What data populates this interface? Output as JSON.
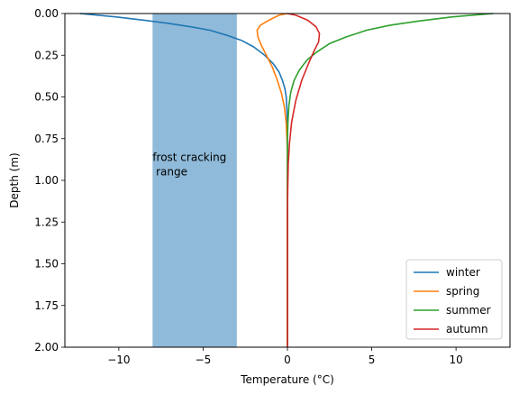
{
  "chart_data": {
    "type": "line",
    "title": "",
    "xlabel": "Temperature (°C)",
    "ylabel": "Depth (m)",
    "xlim": [
      -13.2,
      13.2
    ],
    "ylim": [
      2.0,
      0.0
    ],
    "y_inverted": true,
    "grid": false,
    "legend_position": "lower-right",
    "xticks": [
      -10,
      -5,
      0,
      5,
      10
    ],
    "xtick_labels": [
      "−10",
      "−5",
      "0",
      "5",
      "10"
    ],
    "yticks": [
      0.0,
      0.25,
      0.5,
      0.75,
      1.0,
      1.25,
      1.5,
      1.75,
      2.0
    ],
    "ytick_labels": [
      "0.00",
      "0.25",
      "0.50",
      "0.75",
      "1.00",
      "1.25",
      "1.50",
      "1.75",
      "2.00"
    ],
    "shaded_region": {
      "x_range": [
        -8,
        -3
      ],
      "color": "#8fbad9",
      "label": "frost cracking range",
      "label_lines": [
        "frost cracking",
        " range"
      ],
      "label_anchor": {
        "x": -8,
        "y": 0.97
      }
    },
    "series": [
      {
        "name": "winter",
        "color": "#1f77b4",
        "points": [
          {
            "x": -12.3,
            "y": 0.0
          },
          {
            "x": -10.2,
            "y": 0.02
          },
          {
            "x": -8.5,
            "y": 0.04
          },
          {
            "x": -7.0,
            "y": 0.06
          },
          {
            "x": -5.7,
            "y": 0.08
          },
          {
            "x": -4.6,
            "y": 0.1
          },
          {
            "x": -3.6,
            "y": 0.13
          },
          {
            "x": -2.75,
            "y": 0.16
          },
          {
            "x": -2.0,
            "y": 0.2
          },
          {
            "x": -1.35,
            "y": 0.25
          },
          {
            "x": -0.85,
            "y": 0.3
          },
          {
            "x": -0.5,
            "y": 0.35
          },
          {
            "x": -0.3,
            "y": 0.4
          },
          {
            "x": -0.15,
            "y": 0.45
          },
          {
            "x": -0.07,
            "y": 0.5
          },
          {
            "x": -0.02,
            "y": 0.6
          },
          {
            "x": 0.0,
            "y": 0.7
          },
          {
            "x": 0.0,
            "y": 2.0
          }
        ]
      },
      {
        "name": "spring",
        "color": "#ff7f0e",
        "points": [
          {
            "x": 0.0,
            "y": 0.0
          },
          {
            "x": -0.5,
            "y": 0.01
          },
          {
            "x": -1.1,
            "y": 0.04
          },
          {
            "x": -1.6,
            "y": 0.07
          },
          {
            "x": -1.8,
            "y": 0.1
          },
          {
            "x": -1.75,
            "y": 0.14
          },
          {
            "x": -1.55,
            "y": 0.19
          },
          {
            "x": -1.25,
            "y": 0.25
          },
          {
            "x": -0.9,
            "y": 0.32
          },
          {
            "x": -0.6,
            "y": 0.4
          },
          {
            "x": -0.35,
            "y": 0.48
          },
          {
            "x": -0.18,
            "y": 0.56
          },
          {
            "x": -0.08,
            "y": 0.65
          },
          {
            "x": -0.03,
            "y": 0.75
          },
          {
            "x": 0.0,
            "y": 0.85
          },
          {
            "x": 0.0,
            "y": 2.0
          }
        ]
      },
      {
        "name": "summer",
        "color": "#2ca02c",
        "points": [
          {
            "x": 12.2,
            "y": 0.0
          },
          {
            "x": 9.8,
            "y": 0.02
          },
          {
            "x": 7.8,
            "y": 0.045
          },
          {
            "x": 6.1,
            "y": 0.07
          },
          {
            "x": 4.7,
            "y": 0.1
          },
          {
            "x": 3.5,
            "y": 0.14
          },
          {
            "x": 2.5,
            "y": 0.18
          },
          {
            "x": 1.75,
            "y": 0.23
          },
          {
            "x": 1.15,
            "y": 0.28
          },
          {
            "x": 0.7,
            "y": 0.34
          },
          {
            "x": 0.4,
            "y": 0.4
          },
          {
            "x": 0.2,
            "y": 0.47
          },
          {
            "x": 0.09,
            "y": 0.55
          },
          {
            "x": 0.03,
            "y": 0.65
          },
          {
            "x": 0.0,
            "y": 0.75
          },
          {
            "x": 0.0,
            "y": 2.0
          }
        ]
      },
      {
        "name": "autumn",
        "color": "#d62728",
        "points": [
          {
            "x": 0.0,
            "y": 0.0
          },
          {
            "x": 0.5,
            "y": 0.01
          },
          {
            "x": 1.2,
            "y": 0.04
          },
          {
            "x": 1.7,
            "y": 0.08
          },
          {
            "x": 1.9,
            "y": 0.12
          },
          {
            "x": 1.85,
            "y": 0.17
          },
          {
            "x": 1.6,
            "y": 0.22
          },
          {
            "x": 1.25,
            "y": 0.3
          },
          {
            "x": 0.85,
            "y": 0.4
          },
          {
            "x": 0.5,
            "y": 0.52
          },
          {
            "x": 0.25,
            "y": 0.65
          },
          {
            "x": 0.12,
            "y": 0.78
          },
          {
            "x": 0.05,
            "y": 0.9
          },
          {
            "x": 0.02,
            "y": 1.05
          },
          {
            "x": 0.0,
            "y": 1.2
          },
          {
            "x": 0.0,
            "y": 2.0
          }
        ]
      }
    ]
  }
}
